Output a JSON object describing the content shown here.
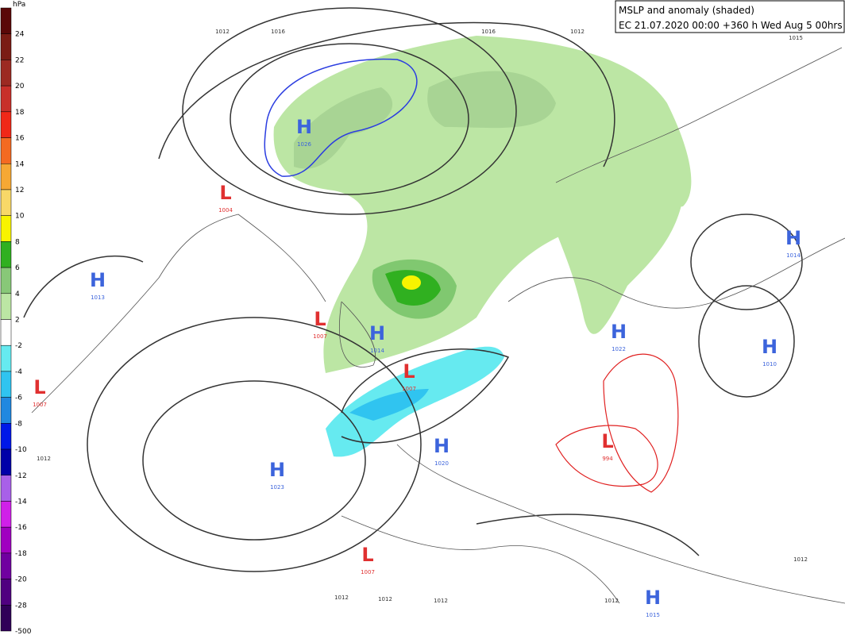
{
  "header": {
    "title": "MSLP and anomaly (shaded)",
    "subtitle": "EC 21.07.2020 00:00 +360 h Wed Aug 5 00hrs"
  },
  "legend": {
    "unit": "hPa",
    "entries": [
      {
        "label": "24",
        "color": "#5a0808"
      },
      {
        "label": "22",
        "color": "#7a1c14"
      },
      {
        "label": "20",
        "color": "#9c2a22"
      },
      {
        "label": "18",
        "color": "#c8302a"
      },
      {
        "label": "16",
        "color": "#f02818"
      },
      {
        "label": "14",
        "color": "#f46a22"
      },
      {
        "label": "12",
        "color": "#f6a834"
      },
      {
        "label": "10",
        "color": "#f8d868"
      },
      {
        "label": "8",
        "color": "#f8f400"
      },
      {
        "label": "6",
        "color": "#30b020"
      },
      {
        "label": "4",
        "color": "#88c878"
      },
      {
        "label": "2",
        "color": "#bce6a4"
      },
      {
        "label": "-2",
        "color": "#ffffff"
      },
      {
        "label": "-4",
        "color": "#66eaf0"
      },
      {
        "label": "-6",
        "color": "#30c4f0"
      },
      {
        "label": "-8",
        "color": "#2088e0"
      },
      {
        "label": "-10",
        "color": "#0018e8"
      },
      {
        "label": "-12",
        "color": "#0000a8"
      },
      {
        "label": "-14",
        "color": "#a860e8"
      },
      {
        "label": "-16",
        "color": "#d020e8"
      },
      {
        "label": "-18",
        "color": "#a000c0"
      },
      {
        "label": "-20",
        "color": "#7000a0"
      },
      {
        "label": "-28",
        "color": "#500080"
      },
      {
        "label": "-500",
        "color": "#300058"
      }
    ]
  },
  "centers": [
    {
      "symbol": "H",
      "value": "1026"
    },
    {
      "symbol": "L",
      "value": "1004"
    },
    {
      "symbol": "H",
      "value": "1013"
    },
    {
      "symbol": "L",
      "value": "1007"
    },
    {
      "symbol": "H",
      "value": "1014"
    },
    {
      "symbol": "L",
      "value": "1007"
    },
    {
      "symbol": "L",
      "value": "1007"
    },
    {
      "symbol": "H",
      "value": "1020"
    },
    {
      "symbol": "H",
      "value": "1023"
    },
    {
      "symbol": "L",
      "value": "1007"
    },
    {
      "symbol": "H",
      "value": "1022"
    },
    {
      "symbol": "L",
      "value": "994"
    },
    {
      "symbol": "H",
      "value": "1014"
    },
    {
      "symbol": "H",
      "value": "1010"
    },
    {
      "symbol": "H",
      "value": "1015"
    }
  ],
  "contour_labels": [
    "1012",
    "1016",
    "1016",
    "1012",
    "1015",
    "1012",
    "1012",
    "1012",
    "1012",
    "1012",
    "1012"
  ]
}
